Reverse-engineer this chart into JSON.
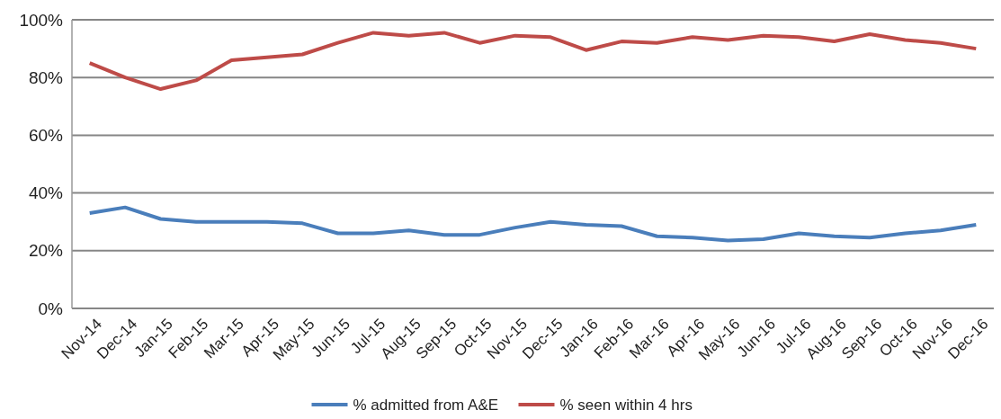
{
  "chart_data": {
    "type": "line",
    "categories": [
      "Nov-14",
      "Dec-14",
      "Jan-15",
      "Feb-15",
      "Mar-15",
      "Apr-15",
      "May-15",
      "Jun-15",
      "Jul-15",
      "Aug-15",
      "Sep-15",
      "Oct-15",
      "Nov-15",
      "Dec-15",
      "Jan-16",
      "Feb-16",
      "Mar-16",
      "Apr-16",
      "May-16",
      "Jun-16",
      "Jul-16",
      "Aug-16",
      "Sep-16",
      "Oct-16",
      "Nov-16",
      "Dec-16"
    ],
    "series": [
      {
        "name": "% admitted from A&E",
        "color": "#4a7ebb",
        "values": [
          33,
          35,
          31,
          30,
          30,
          30,
          29.5,
          26,
          26,
          27,
          25.5,
          25.5,
          28,
          30,
          29,
          28.5,
          25,
          24.5,
          23.5,
          24,
          26,
          25,
          24.5,
          26,
          27,
          29
        ]
      },
      {
        "name": "% seen within 4 hrs",
        "color": "#be4b48",
        "values": [
          85,
          80,
          76,
          79,
          86,
          87,
          88,
          92,
          95.5,
          94.5,
          95.5,
          92,
          94.5,
          94,
          89.5,
          92.5,
          92,
          94,
          93,
          94.5,
          94,
          92.5,
          95,
          93,
          92,
          90
        ]
      }
    ],
    "ylim": [
      0,
      100
    ],
    "yticks": [
      {
        "value": 0,
        "label": "0%"
      },
      {
        "value": 20,
        "label": "20%"
      },
      {
        "value": 40,
        "label": "40%"
      },
      {
        "value": 60,
        "label": "60%"
      },
      {
        "value": 80,
        "label": "80%"
      },
      {
        "value": 100,
        "label": "100%"
      }
    ],
    "grid": "y",
    "legend": "bottom",
    "line_style": "solid",
    "marker": "none"
  }
}
